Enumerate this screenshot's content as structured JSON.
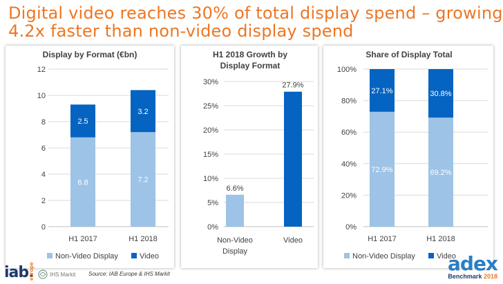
{
  "title": {
    "line1": "Digital video reaches 30% of total display spend – growing",
    "line2": "4.2x faster than non-video display spend"
  },
  "colors": {
    "title": "#ee7623",
    "non_video": "#9dc3e6",
    "video": "#0563c1",
    "axis_text": "#404040",
    "grid": "#d9d9d9"
  },
  "chart_data": [
    {
      "type": "bar",
      "stacked": true,
      "title": "Display by Format (€bn)",
      "categories": [
        "H1 2017",
        "H1 2018"
      ],
      "series": [
        {
          "name": "Non-Video Display",
          "values": [
            6.8,
            7.2
          ],
          "labels": [
            "6.8",
            "7.2"
          ]
        },
        {
          "name": "Video",
          "values": [
            2.5,
            3.2
          ],
          "labels": [
            "2.5",
            "3.2"
          ]
        }
      ],
      "ylim": [
        0,
        12
      ],
      "yticks": [
        "0",
        "2",
        "4",
        "6",
        "8",
        "10",
        "12"
      ],
      "legend": "bottom"
    },
    {
      "type": "bar",
      "title": "H1 2018 Growth by Display Format",
      "title_lines": [
        "H1 2018 Growth by",
        "Display Format"
      ],
      "categories": [
        "Non-Video Display",
        "Video"
      ],
      "category_lines": [
        [
          "Non-Video",
          "Display"
        ],
        [
          "Video"
        ]
      ],
      "values": [
        6.6,
        27.9
      ],
      "labels": [
        "6.6%",
        "27.9%"
      ],
      "ylim": [
        0,
        30
      ],
      "yticks": [
        "0%",
        "5%",
        "10%",
        "15%",
        "20%",
        "25%",
        "30%"
      ]
    },
    {
      "type": "bar",
      "stacked": true,
      "title": "Share of Display Total",
      "categories": [
        "H1 2017",
        "H1 2018"
      ],
      "series": [
        {
          "name": "Non-Video Display",
          "values": [
            72.9,
            69.2
          ],
          "labels": [
            "72.9%",
            "69.2%"
          ]
        },
        {
          "name": "Video",
          "values": [
            27.1,
            30.8
          ],
          "labels": [
            "27.1%",
            "30.8%"
          ]
        }
      ],
      "ylim": [
        0,
        100
      ],
      "yticks": [
        "0%",
        "20%",
        "40%",
        "60%",
        "80%",
        "100%"
      ],
      "legend": "bottom"
    }
  ],
  "footer": {
    "iab": "iab.",
    "iab_sub": "europe",
    "ihs": "IHS Markit",
    "source": "Source: IAB Europe & IHS Markit",
    "adex": "adex",
    "adex_sub": "Benchmark",
    "adex_year": "2018"
  }
}
